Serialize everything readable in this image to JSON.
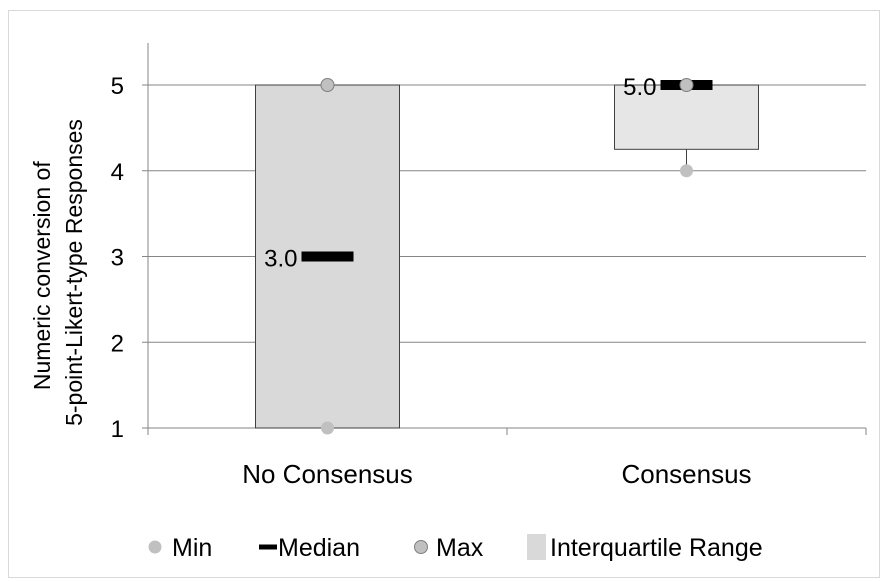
{
  "chart_data": {
    "type": "box",
    "ylabel_lines": [
      "Numeric conversion of",
      "5-point-Likert-type Responses"
    ],
    "ylim": [
      1,
      5
    ],
    "yticks": [
      "1",
      "2",
      "3",
      "4",
      "5"
    ],
    "grid": true,
    "legend_position": "bottom",
    "categories": [
      "No Consensus",
      "Consensus"
    ],
    "boxes": [
      {
        "category": "No Consensus",
        "min": 1,
        "q1": 1,
        "median": 3,
        "q3": 5,
        "max": 5,
        "median_label": "3.0"
      },
      {
        "category": "Consensus",
        "min": 4,
        "q1": 4.25,
        "median": 5,
        "q3": 5,
        "max": 5,
        "median_label": "5.0"
      }
    ],
    "legend": [
      {
        "name": "Min",
        "marker": "circle-light"
      },
      {
        "name": "Median",
        "marker": "dash"
      },
      {
        "name": "Max",
        "marker": "circle-outlined"
      },
      {
        "name": "Interquartile Range",
        "marker": "box"
      }
    ],
    "colors": {
      "box_no_consensus": "#d9d9d9",
      "box_consensus": "#e6e6e6",
      "box_border": "#404040",
      "min_marker": "#c0c0c0",
      "max_marker": "#c0c0c0",
      "max_border": "#7f7f7f",
      "median": "#000000",
      "grid": "#868686"
    }
  }
}
